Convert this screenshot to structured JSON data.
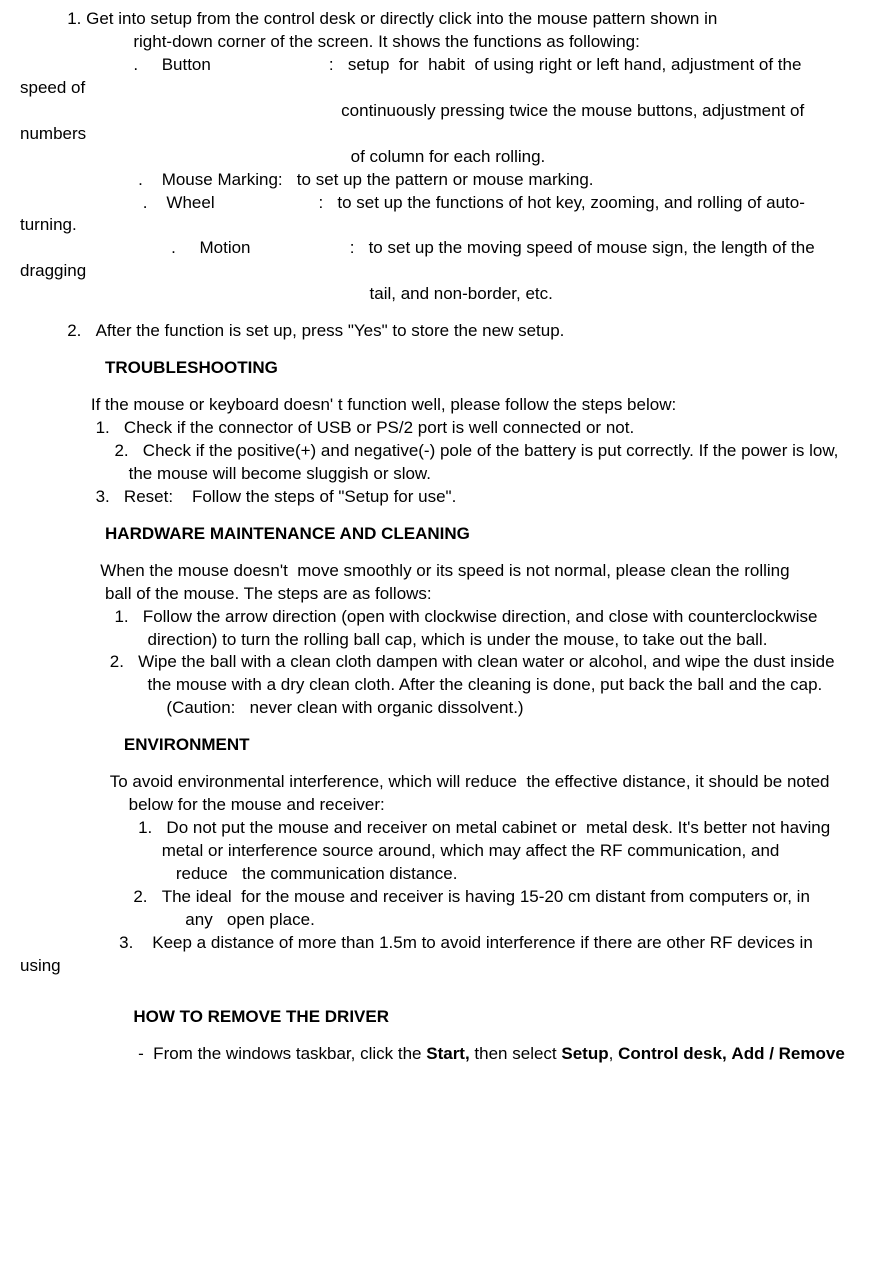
{
  "lines": [
    {
      "text": "          1. Get into setup from the control desk or directly click into the mouse pattern shown in"
    },
    {
      "text": "                        right-down corner of the screen. It shows the functions as following:"
    },
    {
      "text": "                        .     Button                         :   setup  for  habit  of using right or left hand, adjustment of the speed of"
    },
    {
      "text": "                                                                    continuously  pressing  twice  the  mouse buttons,   adjustment of numbers"
    },
    {
      "text": "                                                                      of  column  for  each rolling."
    },
    {
      "text": "                         .    Mouse  Marking:   to  set  up  the  pattern  or  mouse  marking."
    },
    {
      "text": "                          .    Wheel                      :   to  set  up  the  functions  of  hot  key,  zooming,  and rolling of auto-turning."
    },
    {
      "text": "                                .     Motion                     :   to  set up the moving speed of mouse sign,   the length of the dragging"
    },
    {
      "text": "                                                                          tail,  and  non-border, etc."
    },
    {
      "space": true
    },
    {
      "text": "          2.   After the function is set up, press \"Yes\" to store the new setup."
    },
    {
      "space": true
    },
    {
      "text": "                  TROUBLESHOOTING",
      "bold": true
    },
    {
      "space": true
    },
    {
      "text": "               If the mouse or keyboard doesn' t function well, please follow the steps below:"
    },
    {
      "text": "                1.   Check if the connector of USB or PS/2 port is well connected or not."
    },
    {
      "text": "                    2.   Check  if  the  positive(+) and negative(-) pole of the battery is put correctly. If the power is low,"
    },
    {
      "text": "                       the  mouse  will  become  sluggish  or  slow."
    },
    {
      "text": "                3.   Reset:    Follow  the  steps  of  \"Setup  for  use\"."
    },
    {
      "space": true
    },
    {
      "text": "                  HARDWARE MAINTENANCE AND CLEANING",
      "bold": true
    },
    {
      "space": true
    },
    {
      "text": "                 When the mouse doesn't  move smoothly or its speed is not normal, please clean the rolling"
    },
    {
      "text": "                  ball  of  the  mouse.  The  steps  are  as  follows:"
    },
    {
      "text": "                    1.   Follow  the  arrow  direction  (open  with  clockwise direction, and close with counterclockwise"
    },
    {
      "text": "                           direction)  to  turn  the  rolling ball cap, which is under the mouse, to take out the ball."
    },
    {
      "text": "                   2.   Wipe the ball with a clean cloth dampen with clean water or alcohol, and wipe the dust inside"
    },
    {
      "text": "                           the  mouse  with  a  dry  clean  cloth.   After  the  cleaning  is  done,  put  back  the  ball and  the  cap."
    },
    {
      "text": "                               (Caution:   never  clean  with  organic  dissolvent.)"
    },
    {
      "space": true
    },
    {
      "text": "                      ENVIRONMENT",
      "bold": true
    },
    {
      "space": true
    },
    {
      "text": "                   To avoid environmental interference, which will reduce  the effective distance, it should be noted"
    },
    {
      "text": "                       below  for  the  mouse  and  receiver:"
    },
    {
      "text": "                         1.   Do  not  put  the  mouse  and  receiver on metal cabinet or  metal desk. It's better not having"
    },
    {
      "text": "                              metal  or  interference  source  around,  which  may  affect  the  RF  communication, and"
    },
    {
      "text": "                                 reduce   the  communication  distance."
    },
    {
      "text": "                        2.   The ideal  for the mouse and receiver is having 15-20 cm distant from computers or, in"
    },
    {
      "text": "                                   any   open  place."
    },
    {
      "text": "                     3.    Keep a distance of more than 1.5m to avoid interference if there are other RF devices in using"
    },
    {
      "space": true
    },
    {
      "space": true
    },
    {
      "text": "                        HOW TO REMOVE THE DRIVER",
      "bold": true
    },
    {
      "space": true
    }
  ],
  "remove_driver_line": {
    "prefix": "                         -  From the windows taskbar, click the ",
    "b1": "Start,",
    "mid1": " then select ",
    "b2": "Setup",
    "comma1": ", ",
    "b3": "Control desk,",
    "sp": "  ",
    "b4": "Add / Remove"
  }
}
